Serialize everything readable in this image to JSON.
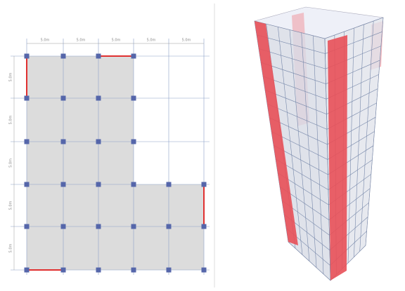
{
  "plan": {
    "top_dimensions": [
      "5.0m",
      "5.0m",
      "5.0m",
      "5.0m",
      "5.0m"
    ],
    "left_dimensions": [
      "5.0m",
      "5.0m",
      "5.0m",
      "5.0m",
      "5.0m"
    ]
  }
}
